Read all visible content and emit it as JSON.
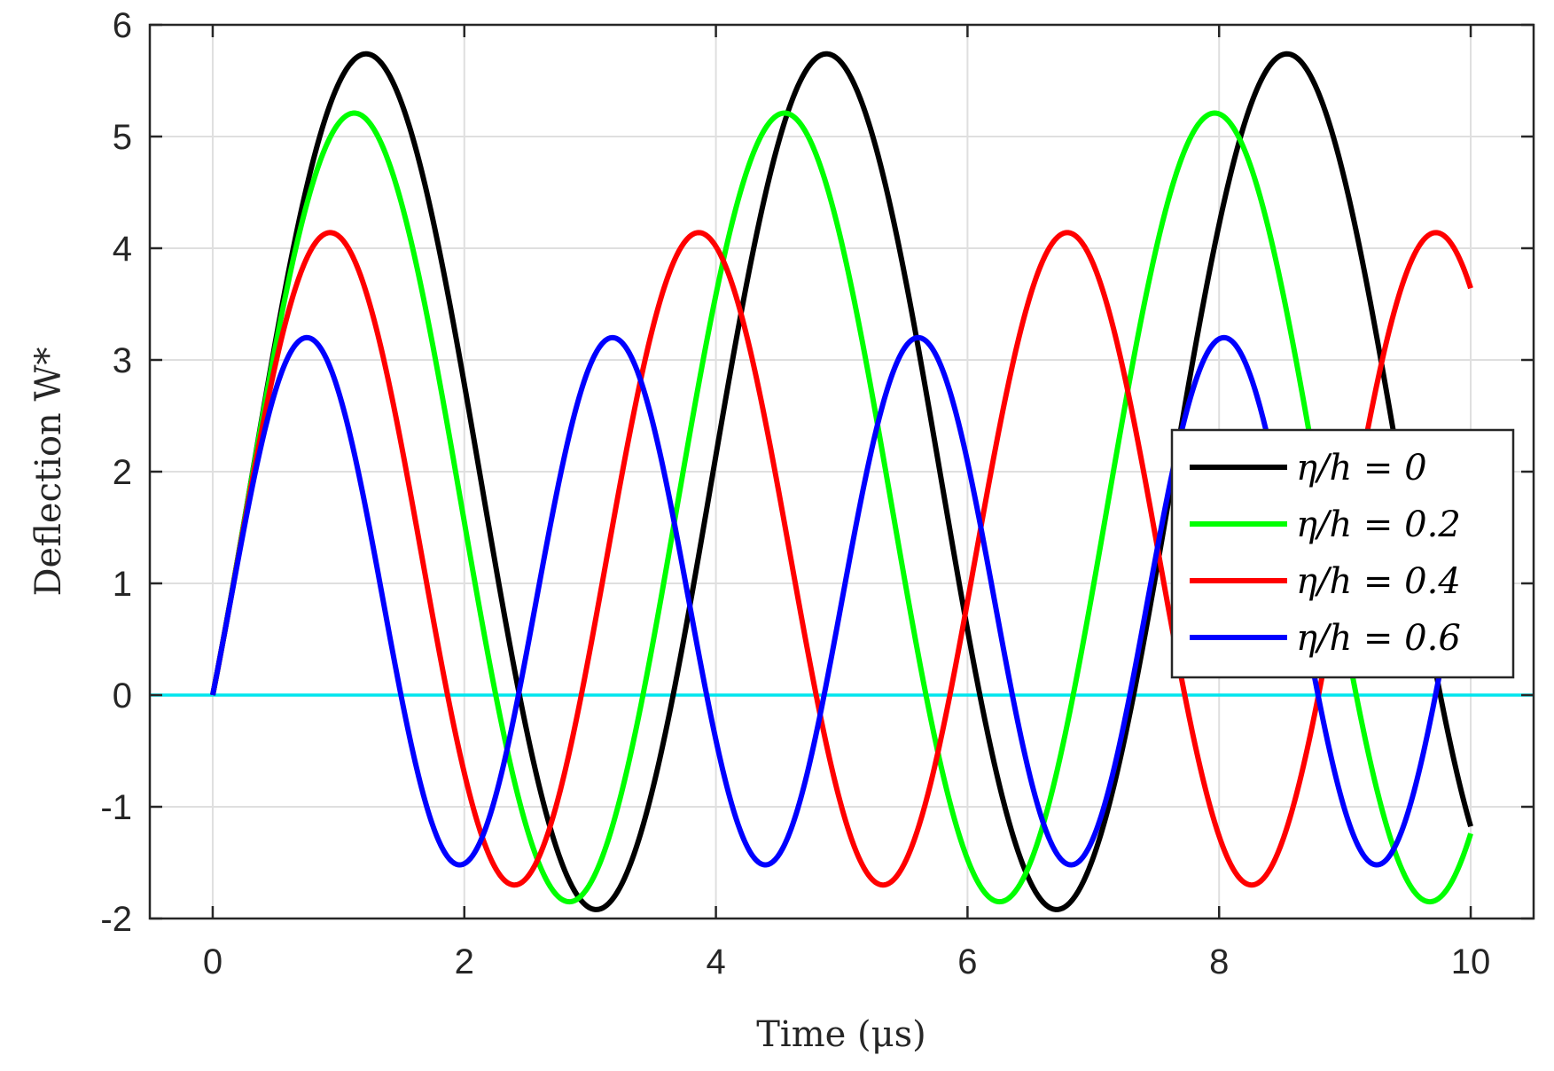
{
  "chart_data": {
    "type": "line",
    "xlabel": "Time (μs)",
    "ylabel": "Deflection W*",
    "xlim": [
      -0.5,
      10.5
    ],
    "ylim": [
      -2,
      6
    ],
    "xticks": [
      0,
      2,
      4,
      6,
      8,
      10
    ],
    "xtick_labels": [
      "0",
      "2",
      "4",
      "6",
      "8",
      "10"
    ],
    "yticks": [
      -2,
      -1,
      0,
      1,
      2,
      3,
      4,
      5,
      6
    ],
    "ytick_labels": [
      "-2",
      "-1",
      "0",
      "1",
      "2",
      "3",
      "4",
      "5",
      "6"
    ],
    "grid": true,
    "legend_position": "right",
    "reference_line": {
      "y": 0,
      "color": "#00e5ee"
    },
    "series": [
      {
        "name": "η/h = 0",
        "color": "#000000",
        "amplitude": 3.83,
        "offset": 1.91,
        "period": 3.66,
        "x_end": 10
      },
      {
        "name": "η/h = 0.2",
        "color": "#00ff00",
        "amplitude": 3.53,
        "offset": 1.68,
        "period": 3.42,
        "x_end": 10
      },
      {
        "name": "η/h = 0.4",
        "color": "#ff0000",
        "amplitude": 2.92,
        "offset": 1.22,
        "period": 2.93,
        "x_end": 10
      },
      {
        "name": "η/h = 0.6",
        "color": "#0000ff",
        "amplitude": 2.36,
        "offset": 0.84,
        "period": 2.43,
        "x_end": 10
      }
    ]
  }
}
